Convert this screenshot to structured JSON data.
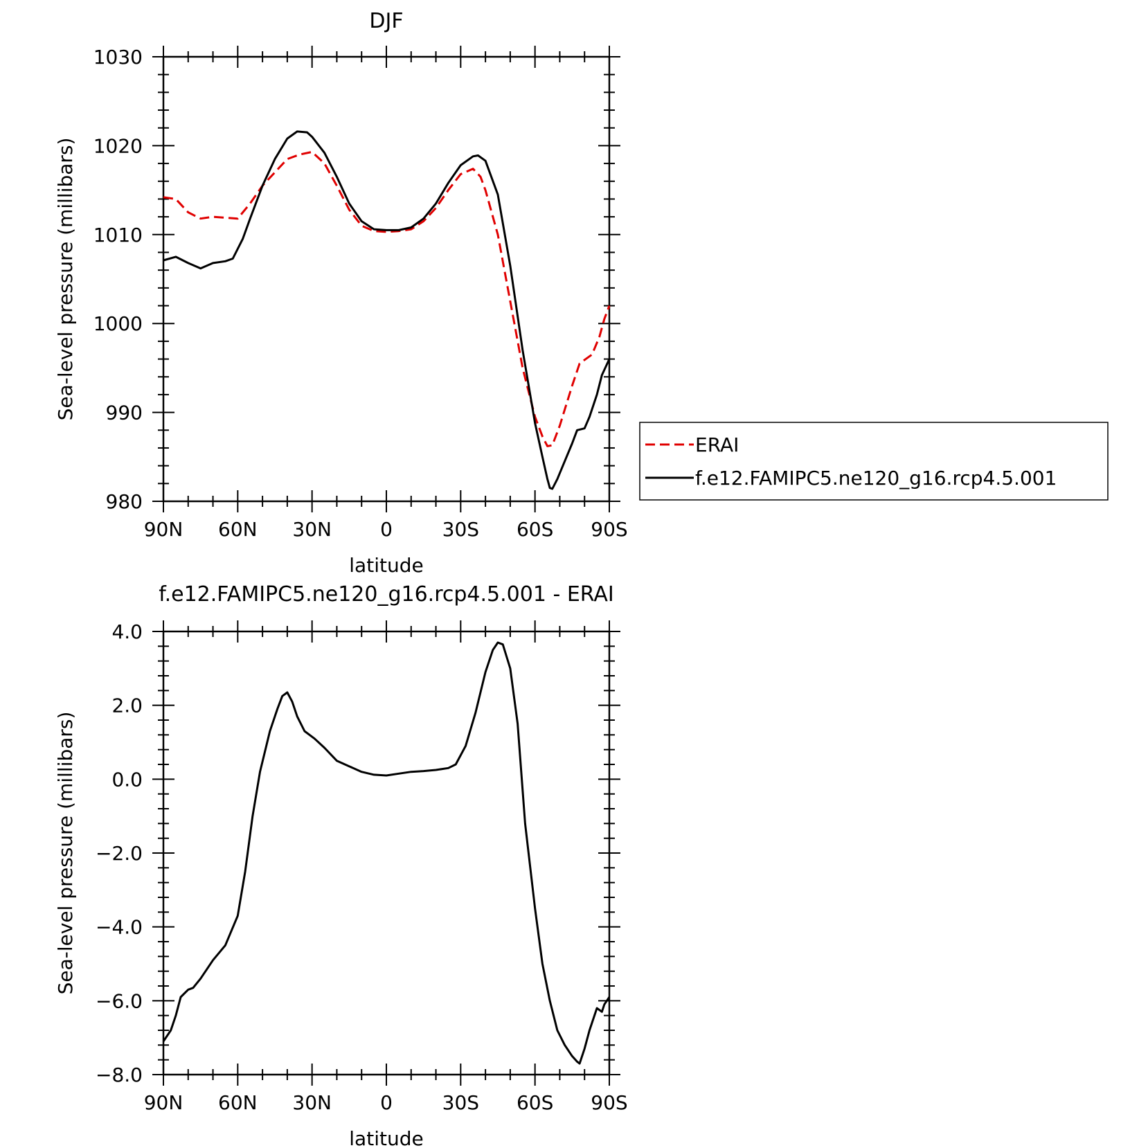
{
  "chart_data": [
    {
      "type": "line",
      "title": "DJF",
      "xlabel": "latitude",
      "ylabel": "Sea-level pressure (millibars)",
      "xlim": [
        90,
        -90
      ],
      "ylim": [
        980,
        1030
      ],
      "xticks": [
        {
          "value": 90,
          "label": "90N"
        },
        {
          "value": 60,
          "label": "60N"
        },
        {
          "value": 30,
          "label": "30N"
        },
        {
          "value": 0,
          "label": "0"
        },
        {
          "value": -30,
          "label": "30S"
        },
        {
          "value": -60,
          "label": "60S"
        },
        {
          "value": -90,
          "label": "90S"
        }
      ],
      "yticks": [
        {
          "value": 980,
          "label": "980"
        },
        {
          "value": 990,
          "label": "990"
        },
        {
          "value": 1000,
          "label": "1000"
        },
        {
          "value": 1010,
          "label": "1010"
        },
        {
          "value": 1020,
          "label": "1020"
        },
        {
          "value": 1030,
          "label": "1030"
        }
      ],
      "legend": {
        "placement": "right",
        "entries": [
          {
            "name": "ERAI",
            "color": "#e00000",
            "dash": true
          },
          {
            "name": "f.e12.FAMIPC5.ne120_g16.rcp4.5.001",
            "color": "#000000",
            "dash": false
          }
        ]
      },
      "series": [
        {
          "name": "ERAI",
          "color": "#e00000",
          "dash": true,
          "points": [
            [
              90,
              1014.2
            ],
            [
              85,
              1014.0
            ],
            [
              80,
              1012.5
            ],
            [
              75,
              1011.8
            ],
            [
              70,
              1012.0
            ],
            [
              65,
              1011.9
            ],
            [
              60,
              1011.8
            ],
            [
              55,
              1013.5
            ],
            [
              50,
              1015.5
            ],
            [
              45,
              1017.0
            ],
            [
              40,
              1018.5
            ],
            [
              35,
              1019.0
            ],
            [
              30,
              1019.3
            ],
            [
              25,
              1018.0
            ],
            [
              20,
              1015.5
            ],
            [
              15,
              1012.8
            ],
            [
              10,
              1011.0
            ],
            [
              5,
              1010.4
            ],
            [
              0,
              1010.3
            ],
            [
              -5,
              1010.4
            ],
            [
              -10,
              1010.6
            ],
            [
              -15,
              1011.5
            ],
            [
              -20,
              1013.0
            ],
            [
              -25,
              1015.0
            ],
            [
              -30,
              1016.8
            ],
            [
              -35,
              1017.4
            ],
            [
              -38,
              1016.5
            ],
            [
              -40,
              1015.0
            ],
            [
              -45,
              1010.0
            ],
            [
              -50,
              1002.5
            ],
            [
              -55,
              995.0
            ],
            [
              -60,
              989.5
            ],
            [
              -63,
              987.3
            ],
            [
              -65,
              986.2
            ],
            [
              -67,
              986.3
            ],
            [
              -70,
              988.5
            ],
            [
              -75,
              993.0
            ],
            [
              -78,
              995.5
            ],
            [
              -80,
              995.9
            ],
            [
              -83,
              996.5
            ],
            [
              -86,
              998.5
            ],
            [
              -88,
              1000.5
            ],
            [
              -90,
              1002.0
            ]
          ]
        },
        {
          "name": "f.e12.FAMIPC5.ne120_g16.rcp4.5.001",
          "color": "#000000",
          "dash": false,
          "points": [
            [
              90,
              1007.1
            ],
            [
              85,
              1007.5
            ],
            [
              80,
              1006.8
            ],
            [
              75,
              1006.2
            ],
            [
              70,
              1006.8
            ],
            [
              65,
              1007.0
            ],
            [
              62,
              1007.3
            ],
            [
              58,
              1009.5
            ],
            [
              55,
              1011.8
            ],
            [
              50,
              1015.5
            ],
            [
              45,
              1018.5
            ],
            [
              40,
              1020.8
            ],
            [
              36,
              1021.6
            ],
            [
              32,
              1021.5
            ],
            [
              30,
              1021.0
            ],
            [
              25,
              1019.2
            ],
            [
              20,
              1016.5
            ],
            [
              15,
              1013.5
            ],
            [
              10,
              1011.5
            ],
            [
              5,
              1010.6
            ],
            [
              0,
              1010.5
            ],
            [
              -5,
              1010.5
            ],
            [
              -10,
              1010.8
            ],
            [
              -15,
              1011.8
            ],
            [
              -20,
              1013.5
            ],
            [
              -25,
              1015.8
            ],
            [
              -30,
              1017.8
            ],
            [
              -35,
              1018.8
            ],
            [
              -37,
              1018.9
            ],
            [
              -40,
              1018.3
            ],
            [
              -45,
              1014.5
            ],
            [
              -50,
              1006.5
            ],
            [
              -55,
              997.0
            ],
            [
              -60,
              988.8
            ],
            [
              -63,
              985.0
            ],
            [
              -65,
              982.5
            ],
            [
              -66,
              981.5
            ],
            [
              -67,
              981.4
            ],
            [
              -69,
              982.5
            ],
            [
              -72,
              984.5
            ],
            [
              -75,
              986.5
            ],
            [
              -77,
              988.0
            ],
            [
              -80,
              988.2
            ],
            [
              -82,
              989.5
            ],
            [
              -85,
              992.0
            ],
            [
              -87,
              994.2
            ],
            [
              -90,
              996.0
            ]
          ]
        }
      ]
    },
    {
      "type": "line",
      "title": "f.e12.FAMIPC5.ne120_g16.rcp4.5.001 - ERAI",
      "xlabel": "latitude",
      "ylabel": "Sea-level pressure (millibars)",
      "xlim": [
        90,
        -90
      ],
      "ylim": [
        -8,
        4
      ],
      "xticks": [
        {
          "value": 90,
          "label": "90N"
        },
        {
          "value": 60,
          "label": "60N"
        },
        {
          "value": 30,
          "label": "30N"
        },
        {
          "value": 0,
          "label": "0"
        },
        {
          "value": -30,
          "label": "30S"
        },
        {
          "value": -60,
          "label": "60S"
        },
        {
          "value": -90,
          "label": "90S"
        }
      ],
      "yticks": [
        {
          "value": -8,
          "label": "-8.0"
        },
        {
          "value": -6,
          "label": "-6.0"
        },
        {
          "value": -4,
          "label": "-4.0"
        },
        {
          "value": -2,
          "label": "-2.0"
        },
        {
          "value": 0,
          "label": "0.0"
        },
        {
          "value": 2,
          "label": "2.0"
        },
        {
          "value": 4,
          "label": "4.0"
        }
      ],
      "series": [
        {
          "color": "#000000",
          "dash": false,
          "points": [
            [
              90,
              -7.1
            ],
            [
              87,
              -6.8
            ],
            [
              85,
              -6.4
            ],
            [
              83,
              -5.9
            ],
            [
              80,
              -5.7
            ],
            [
              78,
              -5.65
            ],
            [
              75,
              -5.4
            ],
            [
              70,
              -4.9
            ],
            [
              65,
              -4.5
            ],
            [
              60,
              -3.7
            ],
            [
              57,
              -2.5
            ],
            [
              54,
              -1.0
            ],
            [
              51,
              0.2
            ],
            [
              47,
              1.3
            ],
            [
              44,
              1.9
            ],
            [
              42,
              2.25
            ],
            [
              40,
              2.35
            ],
            [
              38,
              2.1
            ],
            [
              36,
              1.7
            ],
            [
              33,
              1.3
            ],
            [
              29,
              1.1
            ],
            [
              25,
              0.85
            ],
            [
              20,
              0.5
            ],
            [
              15,
              0.35
            ],
            [
              10,
              0.2
            ],
            [
              5,
              0.12
            ],
            [
              0,
              0.1
            ],
            [
              -5,
              0.15
            ],
            [
              -10,
              0.2
            ],
            [
              -15,
              0.22
            ],
            [
              -20,
              0.25
            ],
            [
              -25,
              0.3
            ],
            [
              -28,
              0.4
            ],
            [
              -32,
              0.9
            ],
            [
              -36,
              1.8
            ],
            [
              -40,
              2.9
            ],
            [
              -43,
              3.5
            ],
            [
              -45,
              3.7
            ],
            [
              -47,
              3.65
            ],
            [
              -50,
              3.0
            ],
            [
              -53,
              1.5
            ],
            [
              -56,
              -1.2
            ],
            [
              -60,
              -3.5
            ],
            [
              -63,
              -5.0
            ],
            [
              -66,
              -6.0
            ],
            [
              -69,
              -6.8
            ],
            [
              -72,
              -7.2
            ],
            [
              -75,
              -7.5
            ],
            [
              -77,
              -7.65
            ],
            [
              -78,
              -7.7
            ],
            [
              -80,
              -7.3
            ],
            [
              -82,
              -6.8
            ],
            [
              -85,
              -6.2
            ],
            [
              -87,
              -6.3
            ],
            [
              -88,
              -6.1
            ],
            [
              -90,
              -5.9
            ]
          ]
        }
      ]
    }
  ]
}
